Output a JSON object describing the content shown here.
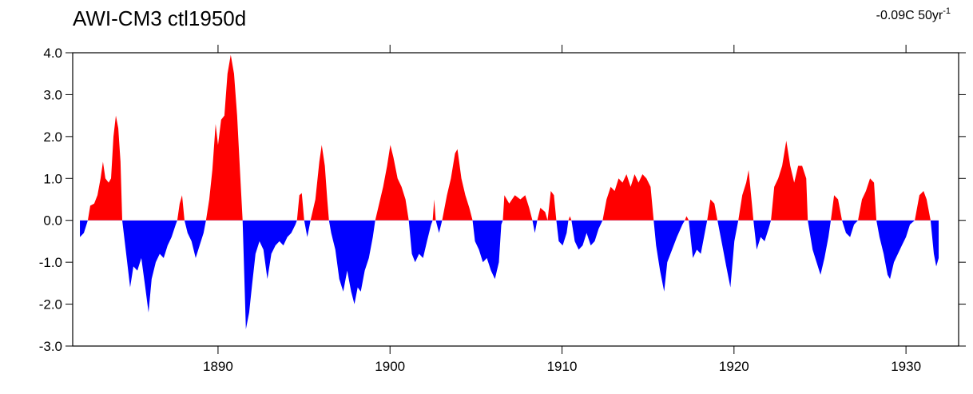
{
  "chart_data": {
    "type": "area",
    "title": "AWI-CM3 ctl1950d",
    "annotation": {
      "text": "-0.09C 50yr",
      "superscript": "-1"
    },
    "positive_color": "#ff0000",
    "negative_color": "#0000ff",
    "xlim": [
      1881.55,
      1933.06
    ],
    "xticks": [
      1890,
      1900,
      1910,
      1920,
      1930
    ],
    "ylim": [
      -3,
      4
    ],
    "yticks": [
      {
        "value": 4,
        "label": "4.0"
      },
      {
        "value": 3,
        "label": "3.0"
      },
      {
        "value": 2,
        "label": "2.0"
      },
      {
        "value": 1,
        "label": "1.0"
      },
      {
        "value": 0,
        "label": "0.0"
      },
      {
        "value": -1,
        "label": "-1.0"
      },
      {
        "value": -2,
        "label": "-2.0"
      },
      {
        "value": -3,
        "label": "-3.0"
      }
    ],
    "x": [
      1881.97,
      1882.2,
      1882.43,
      1882.57,
      1882.8,
      1882.99,
      1883.17,
      1883.31,
      1883.45,
      1883.64,
      1883.78,
      1883.92,
      1884.06,
      1884.2,
      1884.33,
      1884.43,
      1884.66,
      1884.89,
      1885.08,
      1885.31,
      1885.54,
      1885.77,
      1885.96,
      1886.14,
      1886.38,
      1886.61,
      1886.84,
      1887.07,
      1887.3,
      1887.54,
      1887.63,
      1887.77,
      1887.91,
      1888.05,
      1888.23,
      1888.46,
      1888.7,
      1888.93,
      1889.16,
      1889.3,
      1889.49,
      1889.67,
      1889.86,
      1890.0,
      1890.18,
      1890.37,
      1890.55,
      1890.74,
      1890.93,
      1891.11,
      1891.3,
      1891.43,
      1891.62,
      1891.81,
      1891.99,
      1892.18,
      1892.41,
      1892.64,
      1892.87,
      1893.1,
      1893.34,
      1893.57,
      1893.8,
      1894.03,
      1894.26,
      1894.5,
      1894.59,
      1894.73,
      1894.87,
      1895.01,
      1895.19,
      1895.38,
      1895.66,
      1895.89,
      1896.03,
      1896.21,
      1896.35,
      1896.45,
      1896.58,
      1896.82,
      1897.05,
      1897.28,
      1897.51,
      1897.74,
      1897.93,
      1898.12,
      1898.3,
      1898.53,
      1898.77,
      1899.0,
      1899.14,
      1899.37,
      1899.6,
      1899.83,
      1900.02,
      1900.2,
      1900.44,
      1900.67,
      1900.9,
      1901.09,
      1901.27,
      1901.46,
      1901.69,
      1901.92,
      1902.15,
      1902.39,
      1902.48,
      1902.57,
      1902.66,
      1902.85,
      1903.03,
      1903.31,
      1903.54,
      1903.78,
      1903.92,
      1904.15,
      1904.38,
      1904.61,
      1904.8,
      1904.94,
      1905.17,
      1905.4,
      1905.63,
      1905.87,
      1906.1,
      1906.33,
      1906.47,
      1906.56,
      1906.65,
      1906.93,
      1907.26,
      1907.58,
      1907.86,
      1908.09,
      1908.28,
      1908.42,
      1908.56,
      1908.74,
      1909.02,
      1909.16,
      1909.35,
      1909.53,
      1909.67,
      1909.81,
      1910.04,
      1910.27,
      1910.37,
      1910.46,
      1910.55,
      1910.74,
      1910.97,
      1911.2,
      1911.43,
      1911.67,
      1911.9,
      1912.13,
      1912.36,
      1912.59,
      1912.83,
      1913.06,
      1913.29,
      1913.52,
      1913.75,
      1913.99,
      1914.22,
      1914.45,
      1914.68,
      1914.91,
      1915.15,
      1915.33,
      1915.47,
      1915.7,
      1915.94,
      1916.12,
      1916.4,
      1916.68,
      1917.0,
      1917.14,
      1917.24,
      1917.37,
      1917.61,
      1917.84,
      1918.07,
      1918.3,
      1918.44,
      1918.63,
      1918.86,
      1919.04,
      1919.32,
      1919.55,
      1919.79,
      1920.02,
      1920.25,
      1920.48,
      1920.71,
      1920.85,
      1921.04,
      1921.13,
      1921.32,
      1921.55,
      1921.78,
      1922.01,
      1922.15,
      1922.34,
      1922.57,
      1922.8,
      1923.04,
      1923.27,
      1923.5,
      1923.73,
      1923.96,
      1924.2,
      1924.29,
      1924.57,
      1924.8,
      1925.03,
      1925.26,
      1925.49,
      1925.63,
      1925.82,
      1926.05,
      1926.28,
      1926.51,
      1926.75,
      1926.98,
      1927.21,
      1927.44,
      1927.67,
      1927.91,
      1928.14,
      1928.28,
      1928.46,
      1928.7,
      1928.93,
      1929.07,
      1929.3,
      1929.53,
      1929.76,
      1930.0,
      1930.23,
      1930.51,
      1930.78,
      1931.02,
      1931.2,
      1931.43,
      1931.62,
      1931.76,
      1931.9
    ],
    "values": [
      -0.4,
      -0.3,
      0.0,
      0.35,
      0.4,
      0.6,
      1.0,
      1.4,
      1.0,
      0.9,
      1.0,
      2.0,
      2.5,
      2.2,
      1.4,
      0.0,
      -0.8,
      -1.6,
      -1.1,
      -1.2,
      -0.9,
      -1.6,
      -2.2,
      -1.4,
      -1.0,
      -0.8,
      -0.9,
      -0.6,
      -0.4,
      -0.1,
      0.0,
      0.4,
      0.6,
      0.0,
      -0.3,
      -0.5,
      -0.9,
      -0.6,
      -0.3,
      0.0,
      0.5,
      1.2,
      2.3,
      1.8,
      2.4,
      2.5,
      3.5,
      3.95,
      3.5,
      2.5,
      1.0,
      0.0,
      -2.6,
      -2.2,
      -1.5,
      -0.8,
      -0.5,
      -0.7,
      -1.4,
      -0.8,
      -0.6,
      -0.5,
      -0.6,
      -0.4,
      -0.3,
      -0.1,
      0.0,
      0.6,
      0.65,
      0.0,
      -0.4,
      0.0,
      0.5,
      1.4,
      1.8,
      1.3,
      0.5,
      0.0,
      -0.3,
      -0.7,
      -1.4,
      -1.7,
      -1.2,
      -1.7,
      -2.0,
      -1.6,
      -1.7,
      -1.2,
      -0.9,
      -0.4,
      0.0,
      0.4,
      0.8,
      1.3,
      1.8,
      1.5,
      1.0,
      0.8,
      0.5,
      0.0,
      -0.8,
      -1.0,
      -0.8,
      -0.9,
      -0.5,
      -0.1,
      0.0,
      0.5,
      0.0,
      -0.3,
      0.0,
      0.6,
      1.0,
      1.6,
      1.7,
      1.0,
      0.6,
      0.3,
      0.0,
      -0.5,
      -0.7,
      -1.0,
      -0.9,
      -1.2,
      -1.4,
      -1.0,
      -0.1,
      0.0,
      0.6,
      0.4,
      0.6,
      0.5,
      0.6,
      0.3,
      0.0,
      -0.3,
      0.0,
      0.3,
      0.2,
      0.0,
      0.7,
      0.6,
      0.0,
      -0.5,
      -0.6,
      -0.3,
      0.0,
      0.1,
      0.0,
      -0.5,
      -0.7,
      -0.6,
      -0.3,
      -0.6,
      -0.5,
      -0.2,
      0.0,
      0.5,
      0.8,
      0.7,
      1.0,
      0.9,
      1.1,
      0.8,
      1.1,
      0.9,
      1.1,
      1.0,
      0.8,
      0.0,
      -0.6,
      -1.2,
      -1.7,
      -1.0,
      -0.7,
      -0.4,
      -0.1,
      0.0,
      0.1,
      0.0,
      -0.9,
      -0.7,
      -0.8,
      -0.3,
      0.0,
      0.5,
      0.4,
      0.0,
      -0.6,
      -1.1,
      -1.6,
      -0.5,
      0.0,
      0.6,
      0.9,
      1.2,
      0.4,
      0.0,
      -0.7,
      -0.4,
      -0.5,
      -0.2,
      0.0,
      0.8,
      1.0,
      1.3,
      1.9,
      1.3,
      0.9,
      1.3,
      1.3,
      1.0,
      0.0,
      -0.7,
      -1.0,
      -1.3,
      -0.9,
      -0.4,
      0.0,
      0.6,
      0.5,
      0.0,
      -0.3,
      -0.4,
      -0.1,
      0.0,
      0.5,
      0.7,
      1.0,
      0.9,
      0.0,
      -0.4,
      -0.8,
      -1.3,
      -1.4,
      -1.0,
      -0.8,
      -0.6,
      -0.4,
      -0.1,
      0.0,
      0.6,
      0.7,
      0.5,
      0.0,
      -0.8,
      -1.1,
      -0.9
    ]
  }
}
